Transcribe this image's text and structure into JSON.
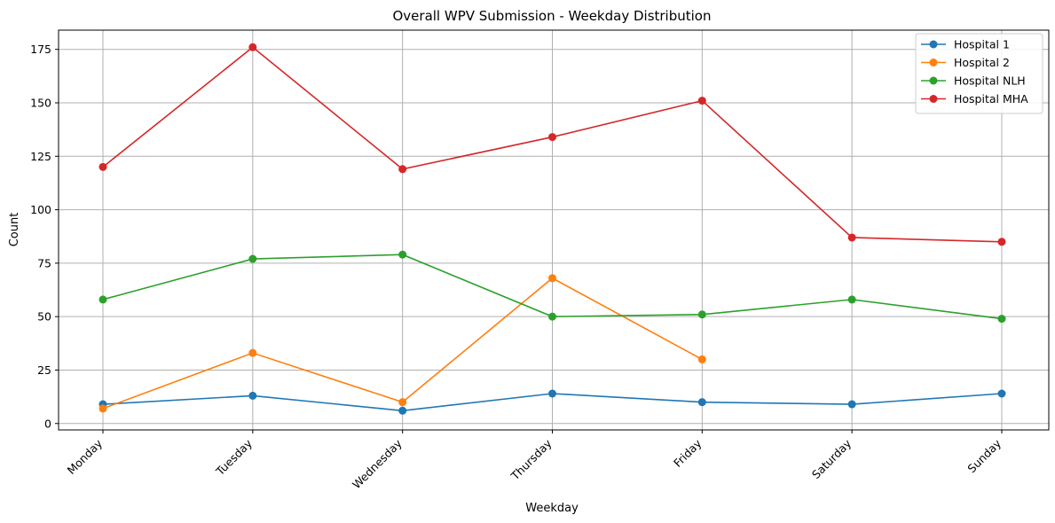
{
  "chart_data": {
    "type": "line",
    "title": "Overall WPV Submission - Weekday Distribution",
    "xlabel": "Weekday",
    "ylabel": "Count",
    "categories": [
      "Monday",
      "Tuesday",
      "Wednesday",
      "Thursday",
      "Friday",
      "Saturday",
      "Sunday"
    ],
    "yticks": [
      0,
      25,
      50,
      75,
      100,
      125,
      150,
      175
    ],
    "ylim": [
      -3,
      184
    ],
    "grid": true,
    "legend_position": "top-right",
    "series": [
      {
        "name": "Hospital 1",
        "color": "#1f77b4",
        "values": [
          9,
          13,
          6,
          14,
          10,
          9,
          14
        ]
      },
      {
        "name": "Hospital 2",
        "color": "#ff7f0e",
        "values": [
          7,
          33,
          10,
          68,
          30,
          null,
          null
        ]
      },
      {
        "name": "Hospital NLH",
        "color": "#2ca02c",
        "values": [
          58,
          77,
          79,
          50,
          51,
          58,
          49
        ]
      },
      {
        "name": "Hospital MHA",
        "color": "#d62728",
        "values": [
          120,
          176,
          119,
          134,
          151,
          87,
          85
        ]
      }
    ]
  }
}
